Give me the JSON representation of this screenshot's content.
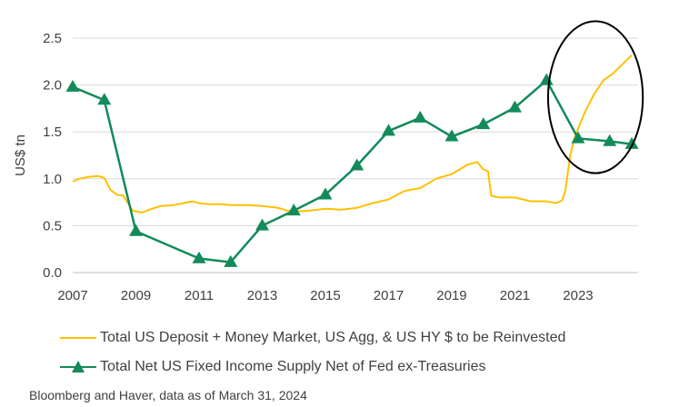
{
  "chart_data": {
    "type": "line",
    "ylabel": "US$ tn",
    "xlabel": "",
    "xlim": [
      2007,
      2024.9
    ],
    "ylim": [
      0,
      2.5
    ],
    "x_ticks": [
      "2007",
      "2009",
      "2011",
      "2013",
      "2015",
      "2017",
      "2019",
      "2021",
      "2023"
    ],
    "y_ticks": [
      "0.0",
      "0.5",
      "1.0",
      "1.5",
      "2.0",
      "2.5"
    ],
    "grid": true,
    "legend_position": "bottom",
    "series": [
      {
        "name": "Total US Deposit + Money Market, US Agg, & US HY $ to be Reinvested",
        "color": "#FFC000",
        "marker": "none",
        "points": [
          [
            2007.0,
            0.97
          ],
          [
            2007.2,
            1.0
          ],
          [
            2007.5,
            1.02
          ],
          [
            2007.8,
            1.03
          ],
          [
            2008.0,
            1.01
          ],
          [
            2008.2,
            0.88
          ],
          [
            2008.4,
            0.83
          ],
          [
            2008.6,
            0.82
          ],
          [
            2008.9,
            0.66
          ],
          [
            2009.2,
            0.64
          ],
          [
            2009.5,
            0.68
          ],
          [
            2009.8,
            0.71
          ],
          [
            2010.2,
            0.72
          ],
          [
            2010.5,
            0.74
          ],
          [
            2010.8,
            0.76
          ],
          [
            2011.0,
            0.74
          ],
          [
            2011.3,
            0.73
          ],
          [
            2011.7,
            0.73
          ],
          [
            2012.0,
            0.72
          ],
          [
            2012.5,
            0.72
          ],
          [
            2013.0,
            0.71
          ],
          [
            2013.5,
            0.69
          ],
          [
            2013.8,
            0.66
          ],
          [
            2014.0,
            0.65
          ],
          [
            2014.5,
            0.66
          ],
          [
            2015.0,
            0.68
          ],
          [
            2015.5,
            0.67
          ],
          [
            2016.0,
            0.69
          ],
          [
            2016.5,
            0.74
          ],
          [
            2017.0,
            0.78
          ],
          [
            2017.5,
            0.87
          ],
          [
            2018.0,
            0.9
          ],
          [
            2018.5,
            1.0
          ],
          [
            2019.0,
            1.05
          ],
          [
            2019.5,
            1.15
          ],
          [
            2019.8,
            1.18
          ],
          [
            2020.0,
            1.1
          ],
          [
            2020.15,
            1.08
          ],
          [
            2020.25,
            0.82
          ],
          [
            2020.5,
            0.8
          ],
          [
            2021.0,
            0.8
          ],
          [
            2021.5,
            0.76
          ],
          [
            2022.0,
            0.76
          ],
          [
            2022.3,
            0.74
          ],
          [
            2022.5,
            0.77
          ],
          [
            2022.6,
            0.88
          ],
          [
            2022.75,
            1.25
          ],
          [
            2022.9,
            1.45
          ],
          [
            2023.2,
            1.7
          ],
          [
            2023.5,
            1.9
          ],
          [
            2023.8,
            2.05
          ],
          [
            2024.1,
            2.12
          ],
          [
            2024.4,
            2.22
          ],
          [
            2024.7,
            2.32
          ]
        ]
      },
      {
        "name": "Total Net US Fixed Income Supply Net of Fed ex-Treasuries",
        "color": "#138A5A",
        "marker": "triangle",
        "points": [
          [
            2007,
            1.98
          ],
          [
            2008,
            1.84
          ],
          [
            2009,
            0.44
          ],
          [
            2011,
            0.15
          ],
          [
            2012,
            0.11
          ],
          [
            2013,
            0.5
          ],
          [
            2014,
            0.66
          ],
          [
            2015,
            0.83
          ],
          [
            2016,
            1.14
          ],
          [
            2017,
            1.51
          ],
          [
            2018,
            1.65
          ],
          [
            2019,
            1.45
          ],
          [
            2020,
            1.58
          ],
          [
            2021,
            1.76
          ],
          [
            2022,
            2.05
          ],
          [
            2023,
            1.43
          ],
          [
            2024,
            1.4
          ],
          [
            2024.7,
            1.37
          ]
        ]
      }
    ],
    "annotations": [
      {
        "type": "ellipse",
        "center": [
          2023.55,
          1.87
        ],
        "rx_years": 1.5,
        "ry_value": 0.81,
        "color": "#000000"
      }
    ]
  },
  "source": "Bloomberg and Haver, data as of March 31, 2024"
}
